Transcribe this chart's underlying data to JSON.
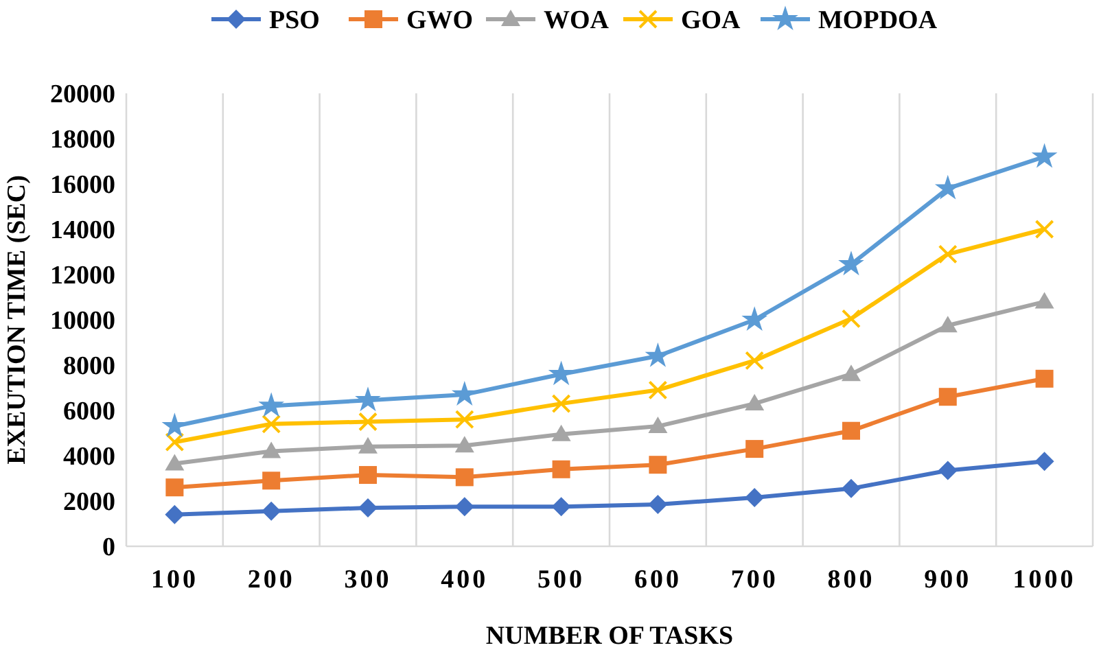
{
  "chart_data": {
    "type": "line",
    "xlabel": "NUMBER OF TASKS",
    "ylabel": "EXEUTION TIME (SEC)",
    "categories": [
      "100",
      "200",
      "300",
      "400",
      "500",
      "600",
      "700",
      "800",
      "900",
      "1000"
    ],
    "ylim": [
      0,
      20000
    ],
    "yticks": [
      0,
      2000,
      4000,
      6000,
      8000,
      10000,
      12000,
      14000,
      16000,
      18000,
      20000
    ],
    "grid": "x",
    "legend": "top",
    "series": [
      {
        "name": "PSO",
        "color": "#4472c4",
        "marker": "diamond",
        "values": [
          1400,
          1550,
          1700,
          1750,
          1750,
          1850,
          2150,
          2550,
          3350,
          3750
        ]
      },
      {
        "name": "GWO",
        "color": "#ed7d31",
        "marker": "square",
        "values": [
          2600,
          2900,
          3150,
          3050,
          3400,
          3600,
          4300,
          5100,
          6600,
          7400
        ]
      },
      {
        "name": "WOA",
        "color": "#a5a5a5",
        "marker": "triangle",
        "values": [
          3650,
          4200,
          4400,
          4450,
          4950,
          5300,
          6300,
          7600,
          9750,
          10800
        ]
      },
      {
        "name": "GOA",
        "color": "#ffc000",
        "marker": "cross",
        "values": [
          4600,
          5400,
          5500,
          5600,
          6300,
          6900,
          8200,
          10050,
          12900,
          14000
        ]
      },
      {
        "name": "MOPDOA",
        "color": "#5b9bd5",
        "marker": "star",
        "values": [
          5300,
          6200,
          6450,
          6700,
          7600,
          8400,
          10000,
          12450,
          15800,
          17200
        ]
      }
    ]
  }
}
